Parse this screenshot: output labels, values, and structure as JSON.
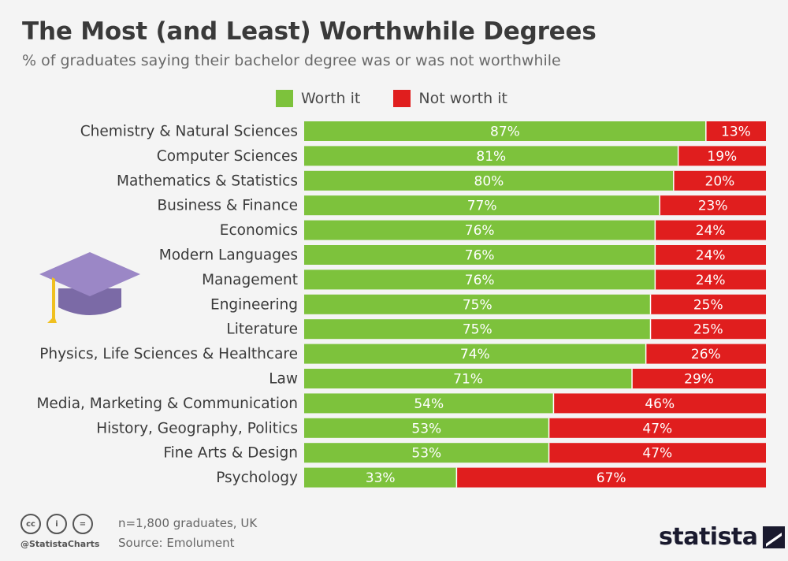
{
  "header": {
    "title": "The Most (and Least) Worthwhile Degrees",
    "subtitle": "% of graduates saying their bachelor degree was or was not worthwhile"
  },
  "colors": {
    "worth": "#7dc23c",
    "not_worth": "#e01e1e",
    "cap_top": "#9b87c6",
    "cap_base": "#7b6aa6",
    "tassel": "#f0c020"
  },
  "icons": {
    "decoration": "graduation-cap-icon",
    "license": [
      "cc-icon",
      "attribution-icon",
      "no-derivatives-icon"
    ],
    "brand": "statista-logo-icon"
  },
  "chart_data": {
    "type": "bar",
    "orientation": "horizontal",
    "stacked": true,
    "percent_suffix": "%",
    "categories": [
      "Chemistry & Natural Sciences",
      "Computer Sciences",
      "Mathematics & Statistics",
      "Business & Finance",
      "Economics",
      "Modern Languages",
      "Management",
      "Engineering",
      "Literature",
      "Physics, Life Sciences & Healthcare",
      "Law",
      "Media, Marketing & Communication",
      "History, Geography, Politics",
      "Fine Arts & Design",
      "Psychology"
    ],
    "series": [
      {
        "name": "Worth it",
        "values": [
          87,
          81,
          80,
          77,
          76,
          76,
          76,
          75,
          75,
          74,
          71,
          54,
          53,
          53,
          33
        ]
      },
      {
        "name": "Not worth it",
        "values": [
          13,
          19,
          20,
          23,
          24,
          24,
          24,
          25,
          25,
          26,
          29,
          46,
          47,
          47,
          67
        ]
      }
    ],
    "xlim": [
      0,
      100
    ],
    "legend_position": "top"
  },
  "footer": {
    "license_icons_text": [
      "cc",
      "i",
      "="
    ],
    "handle": "@StatistaCharts",
    "note": "n=1,800 graduates, UK",
    "source": "Source: Emolument",
    "brand": "statista"
  }
}
